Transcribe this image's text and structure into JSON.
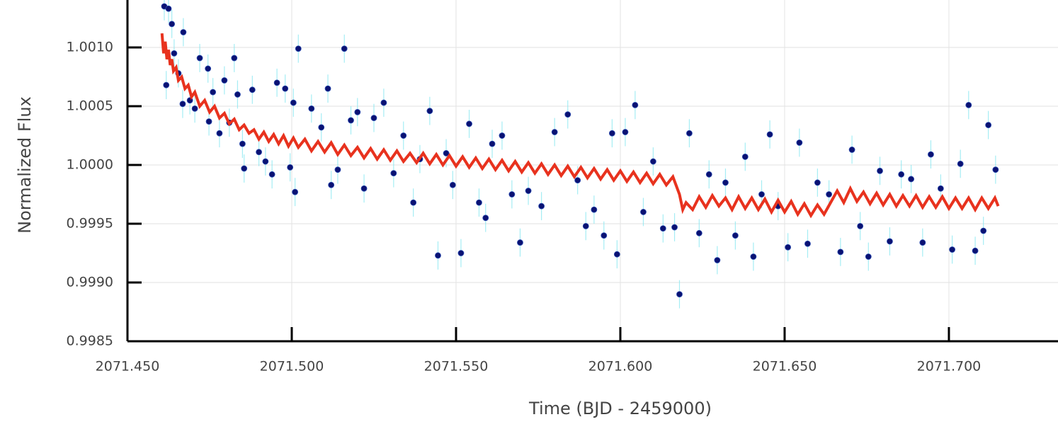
{
  "chart_data": {
    "type": "scatter",
    "xlabel": "Time (BJD - 2459000)",
    "ylabel": "Normalized Flux",
    "xlim": [
      2071.45,
      2071.7332
    ],
    "ylim": [
      0.9985,
      1.001404
    ],
    "xticks": [
      {
        "value": 2071.45,
        "label": "2071.450"
      },
      {
        "value": 2071.5,
        "label": "2071.500"
      },
      {
        "value": 2071.55,
        "label": "2071.550"
      },
      {
        "value": 2071.6,
        "label": "2071.600"
      },
      {
        "value": 2071.65,
        "label": "2071.650"
      },
      {
        "value": 2071.7,
        "label": "2071.700"
      }
    ],
    "yticks": [
      0.9985,
      {
        "value": 0.999,
        "label": "0.9990"
      },
      0.9995,
      {
        "value": 1.0,
        "label": "1.0000"
      },
      1.0005,
      {
        "value": 1.001,
        "label": "1.0010"
      }
    ],
    "grid": true,
    "series": [
      {
        "type": "scatter",
        "color": "#0a1172",
        "error_color": "#7fe6f0",
        "yerr": 0.00012,
        "x": [
          2071.4612,
          2071.4625,
          2071.4635,
          2071.4618,
          2071.4642,
          2071.4655,
          2071.467,
          2071.4668,
          2071.469,
          2071.4705,
          2071.472,
          2071.4745,
          2071.476,
          2071.4748,
          2071.478,
          2071.4795,
          2071.481,
          2071.4825,
          2071.4835,
          2071.485,
          2071.4855,
          2071.488,
          2071.49,
          2071.492,
          2071.494,
          2071.4955,
          2071.498,
          2071.4995,
          2071.5005,
          2071.501,
          2071.502,
          2071.506,
          2071.509,
          2071.511,
          2071.512,
          2071.514,
          2071.516,
          2071.518,
          2071.52,
          2071.522,
          2071.525,
          2071.528,
          2071.531,
          2071.534,
          2071.537,
          2071.539,
          2071.542,
          2071.5445,
          2071.547,
          2071.549,
          2071.5515,
          2071.554,
          2071.557,
          2071.559,
          2071.561,
          2071.564,
          2071.567,
          2071.5695,
          2071.572,
          2071.576,
          2071.58,
          2071.584,
          2071.587,
          2071.5895,
          2071.592,
          2071.595,
          2071.5975,
          2071.599,
          2071.6015,
          2071.6045,
          2071.607,
          2071.61,
          2071.613,
          2071.6165,
          2071.618,
          2071.621,
          2071.624,
          2071.627,
          2071.6295,
          2071.632,
          2071.635,
          2071.638,
          2071.6405,
          2071.643,
          2071.6455,
          2071.648,
          2071.651,
          2071.6545,
          2071.657,
          2071.66,
          2071.6635,
          2071.667,
          2071.6705,
          2071.673,
          2071.6755,
          2071.679,
          2071.682,
          2071.6855,
          2071.6885,
          2071.692,
          2071.6945,
          2071.6975,
          2071.701,
          2071.7035,
          2071.706,
          2071.708,
          2071.7105,
          2071.712,
          2071.7142
        ],
        "values": [
          1.00135,
          1.00133,
          1.0012,
          1.00068,
          1.00095,
          1.00078,
          1.00113,
          1.00052,
          1.00055,
          1.00048,
          1.00091,
          1.00082,
          1.00062,
          1.00037,
          1.00027,
          1.00072,
          1.00036,
          1.00091,
          1.0006,
          1.00018,
          0.99997,
          1.00064,
          1.00011,
          1.00003,
          0.99992,
          1.0007,
          1.00065,
          0.99998,
          1.00053,
          0.99977,
          1.00099,
          1.00048,
          1.00032,
          1.00065,
          0.99983,
          0.99996,
          1.00099,
          1.00038,
          1.00045,
          0.9998,
          1.0004,
          1.00053,
          0.99993,
          1.00025,
          0.99968,
          1.00005,
          1.00046,
          0.99923,
          1.0001,
          0.99983,
          0.99925,
          1.00035,
          0.99968,
          0.99955,
          1.00018,
          1.00025,
          0.99975,
          0.99934,
          0.99978,
          0.99965,
          1.00028,
          1.00043,
          0.99987,
          0.99948,
          0.99962,
          0.9994,
          1.00027,
          0.99924,
          1.00028,
          1.00051,
          0.9996,
          1.00003,
          0.99946,
          0.99947,
          0.9989,
          1.00027,
          0.99942,
          0.99992,
          0.99919,
          0.99985,
          0.9994,
          1.00007,
          0.99922,
          0.99975,
          1.00026,
          0.99965,
          0.9993,
          1.00019,
          0.99933,
          0.99985,
          0.99975,
          0.99926,
          1.00013,
          0.99948,
          0.99922,
          0.99995,
          0.99935,
          0.99992,
          0.99988,
          0.99934,
          1.00009,
          0.9998,
          0.99928,
          1.00001,
          1.00051,
          0.99927,
          0.99944,
          1.00034,
          0.99996
        ]
      },
      {
        "type": "line",
        "color": "#e8321e",
        "x": [
          2071.4605,
          2071.461,
          2071.4615,
          2071.462,
          2071.4625,
          2071.463,
          2071.4635,
          2071.464,
          2071.4648,
          2071.4655,
          2071.4665,
          2071.4675,
          2071.4685,
          2071.4695,
          2071.4705,
          2071.472,
          2071.4735,
          2071.475,
          2071.4765,
          2071.478,
          2071.4795,
          2071.481,
          2071.4825,
          2071.484,
          2071.4855,
          2071.487,
          2071.4885,
          2071.49,
          2071.4915,
          2071.493,
          2071.4945,
          2071.496,
          2071.4975,
          2071.499,
          2071.5005,
          2071.502,
          2071.504,
          2071.506,
          2071.508,
          2071.51,
          2071.512,
          2071.514,
          2071.516,
          2071.518,
          2071.52,
          2071.522,
          2071.524,
          2071.526,
          2071.528,
          2071.53,
          2071.532,
          2071.534,
          2071.536,
          2071.538,
          2071.54,
          2071.542,
          2071.544,
          2071.546,
          2071.548,
          2071.55,
          2071.552,
          2071.554,
          2071.556,
          2071.558,
          2071.56,
          2071.562,
          2071.564,
          2071.566,
          2071.568,
          2071.57,
          2071.572,
          2071.574,
          2071.576,
          2071.578,
          2071.58,
          2071.582,
          2071.584,
          2071.586,
          2071.588,
          2071.59,
          2071.592,
          2071.594,
          2071.596,
          2071.598,
          2071.6,
          2071.602,
          2071.604,
          2071.606,
          2071.608,
          2071.61,
          2071.612,
          2071.614,
          2071.616,
          2071.618,
          2071.619,
          2071.62,
          2071.622,
          2071.624,
          2071.626,
          2071.628,
          2071.63,
          2071.632,
          2071.634,
          2071.636,
          2071.638,
          2071.64,
          2071.642,
          2071.644,
          2071.646,
          2071.648,
          2071.65,
          2071.652,
          2071.654,
          2071.656,
          2071.658,
          2071.66,
          2071.662,
          2071.664,
          2071.666,
          2071.668,
          2071.67,
          2071.672,
          2071.674,
          2071.676,
          2071.678,
          2071.68,
          2071.682,
          2071.684,
          2071.686,
          2071.688,
          2071.69,
          2071.692,
          2071.694,
          2071.696,
          2071.698,
          2071.7,
          2071.702,
          2071.704,
          2071.706,
          2071.708,
          2071.71,
          2071.712,
          2071.714,
          2071.715
        ],
        "values": [
          1.00112,
          1.00095,
          1.00105,
          1.0009,
          1.00098,
          1.00085,
          1.0009,
          1.0008,
          1.00083,
          1.00072,
          1.00075,
          1.00065,
          1.00068,
          1.00058,
          1.00062,
          1.0005,
          1.00055,
          1.00045,
          1.0005,
          1.0004,
          1.00044,
          1.00035,
          1.00039,
          1.0003,
          1.00034,
          1.00027,
          1.0003,
          1.00022,
          1.00028,
          1.0002,
          1.00026,
          1.00018,
          1.00025,
          1.00016,
          1.00023,
          1.00015,
          1.00022,
          1.00012,
          1.0002,
          1.00011,
          1.00019,
          1.00009,
          1.00017,
          1.00008,
          1.00015,
          1.00006,
          1.00014,
          1.00005,
          1.00013,
          1.00004,
          1.00012,
          1.00003,
          1.0001,
          1.00002,
          1.0001,
          1.00001,
          1.00009,
          1.0,
          1.00008,
          0.99999,
          1.00007,
          0.99998,
          1.00006,
          0.99997,
          1.00005,
          0.99996,
          1.00004,
          0.99995,
          1.00003,
          0.99994,
          1.00002,
          0.99993,
          1.00001,
          0.99992,
          1.0,
          0.99991,
          0.99999,
          0.9999,
          0.99998,
          0.99989,
          0.99997,
          0.99988,
          0.99996,
          0.99987,
          0.99995,
          0.99986,
          0.99994,
          0.99985,
          0.99993,
          0.99984,
          0.99992,
          0.99983,
          0.9999,
          0.99975,
          0.99962,
          0.99968,
          0.99962,
          0.99973,
          0.99964,
          0.99974,
          0.99965,
          0.99972,
          0.99962,
          0.99973,
          0.99963,
          0.99972,
          0.99962,
          0.99971,
          0.9996,
          0.9997,
          0.9996,
          0.99969,
          0.99958,
          0.99967,
          0.99957,
          0.99966,
          0.99958,
          0.99968,
          0.99978,
          0.99968,
          0.9998,
          0.99969,
          0.99977,
          0.99967,
          0.99976,
          0.99966,
          0.99975,
          0.99965,
          0.99974,
          0.99965,
          0.99974,
          0.99964,
          0.99973,
          0.99964,
          0.99973,
          0.99963,
          0.99972,
          0.99963,
          0.99972,
          0.99962,
          0.99972,
          0.99963,
          0.99972,
          0.99965
        ]
      }
    ]
  }
}
